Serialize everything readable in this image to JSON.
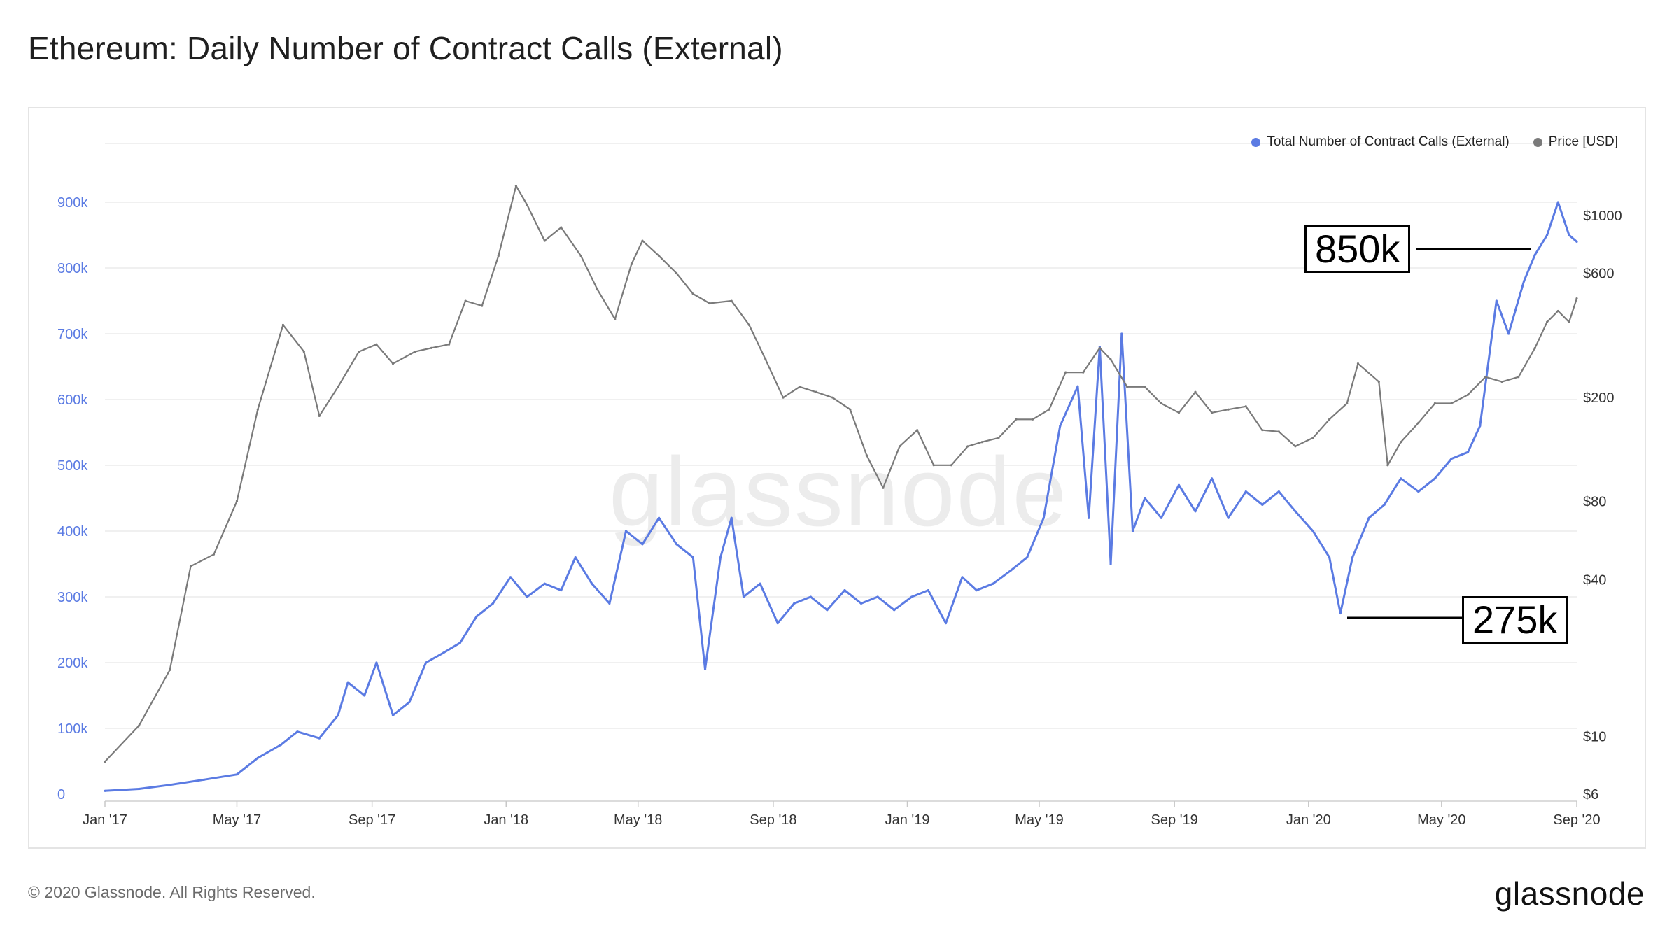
{
  "title": "Ethereum: Daily Number of Contract Calls (External)",
  "watermark": "glassnode",
  "footer": "© 2020 Glassnode. All Rights Reserved.",
  "brand": "glassnode",
  "legend": [
    {
      "label": "Total Number of Contract Calls (External)",
      "color": "#5b7be3"
    },
    {
      "label": "Price [USD]",
      "color": "#7a7a7a"
    }
  ],
  "callouts": [
    {
      "label": "850k",
      "value": 850000,
      "date": "2020-08-25"
    },
    {
      "label": "275k",
      "value": 275000,
      "date": "2020-01-30"
    }
  ],
  "chart_data": {
    "type": "line",
    "title": "Ethereum: Daily Number of Contract Calls (External)",
    "x_ticks": [
      "Jan '17",
      "May '17",
      "Sep '17",
      "Jan '18",
      "May '18",
      "Sep '18",
      "Jan '19",
      "May '19",
      "Sep '19",
      "Jan '20",
      "May '20",
      "Sep '20"
    ],
    "x_range": [
      "2017-01-01",
      "2020-09-01"
    ],
    "y_left": {
      "ticks": [
        "0",
        "100k",
        "200k",
        "300k",
        "400k",
        "500k",
        "600k",
        "700k",
        "800k",
        "900k"
      ],
      "range": [
        0,
        1000000
      ],
      "color": "#5b7be3"
    },
    "y_right": {
      "ticks": [
        "$6",
        "$10",
        "$40",
        "$80",
        "$200",
        "$600",
        "$1000"
      ],
      "scale": "log",
      "range": [
        6,
        1500
      ]
    },
    "grid": true,
    "legend_position": "top-right",
    "series": [
      {
        "name": "Total Number of Contract Calls (External)",
        "axis": "left",
        "color": "#5b7be3",
        "points": [
          [
            "2017-01-01",
            5000
          ],
          [
            "2017-02-01",
            8000
          ],
          [
            "2017-03-01",
            14000
          ],
          [
            "2017-04-01",
            22000
          ],
          [
            "2017-05-01",
            30000
          ],
          [
            "2017-05-20",
            55000
          ],
          [
            "2017-06-10",
            75000
          ],
          [
            "2017-06-25",
            95000
          ],
          [
            "2017-07-15",
            85000
          ],
          [
            "2017-08-01",
            120000
          ],
          [
            "2017-08-10",
            170000
          ],
          [
            "2017-08-25",
            150000
          ],
          [
            "2017-09-05",
            200000
          ],
          [
            "2017-09-20",
            120000
          ],
          [
            "2017-10-05",
            140000
          ],
          [
            "2017-10-20",
            200000
          ],
          [
            "2017-11-05",
            215000
          ],
          [
            "2017-11-20",
            230000
          ],
          [
            "2017-12-05",
            270000
          ],
          [
            "2017-12-20",
            290000
          ],
          [
            "2018-01-05",
            330000
          ],
          [
            "2018-01-20",
            300000
          ],
          [
            "2018-02-05",
            320000
          ],
          [
            "2018-02-20",
            310000
          ],
          [
            "2018-03-05",
            360000
          ],
          [
            "2018-03-20",
            320000
          ],
          [
            "2018-04-05",
            290000
          ],
          [
            "2018-04-20",
            400000
          ],
          [
            "2018-05-05",
            380000
          ],
          [
            "2018-05-20",
            420000
          ],
          [
            "2018-06-05",
            380000
          ],
          [
            "2018-06-20",
            360000
          ],
          [
            "2018-07-01",
            190000
          ],
          [
            "2018-07-15",
            360000
          ],
          [
            "2018-07-25",
            420000
          ],
          [
            "2018-08-05",
            300000
          ],
          [
            "2018-08-20",
            320000
          ],
          [
            "2018-09-05",
            260000
          ],
          [
            "2018-09-20",
            290000
          ],
          [
            "2018-10-05",
            300000
          ],
          [
            "2018-10-20",
            280000
          ],
          [
            "2018-11-05",
            310000
          ],
          [
            "2018-11-20",
            290000
          ],
          [
            "2018-12-05",
            300000
          ],
          [
            "2018-12-20",
            280000
          ],
          [
            "2019-01-05",
            300000
          ],
          [
            "2019-01-20",
            310000
          ],
          [
            "2019-02-05",
            260000
          ],
          [
            "2019-02-20",
            330000
          ],
          [
            "2019-03-05",
            310000
          ],
          [
            "2019-03-20",
            320000
          ],
          [
            "2019-04-05",
            340000
          ],
          [
            "2019-04-20",
            360000
          ],
          [
            "2019-05-05",
            420000
          ],
          [
            "2019-05-20",
            560000
          ],
          [
            "2019-06-05",
            620000
          ],
          [
            "2019-06-15",
            420000
          ],
          [
            "2019-06-25",
            680000
          ],
          [
            "2019-07-05",
            350000
          ],
          [
            "2019-07-15",
            700000
          ],
          [
            "2019-07-25",
            400000
          ],
          [
            "2019-08-05",
            450000
          ],
          [
            "2019-08-20",
            420000
          ],
          [
            "2019-09-05",
            470000
          ],
          [
            "2019-09-20",
            430000
          ],
          [
            "2019-10-05",
            480000
          ],
          [
            "2019-10-20",
            420000
          ],
          [
            "2019-11-05",
            460000
          ],
          [
            "2019-11-20",
            440000
          ],
          [
            "2019-12-05",
            460000
          ],
          [
            "2019-12-20",
            430000
          ],
          [
            "2020-01-05",
            400000
          ],
          [
            "2020-01-20",
            360000
          ],
          [
            "2020-01-30",
            275000
          ],
          [
            "2020-02-10",
            360000
          ],
          [
            "2020-02-25",
            420000
          ],
          [
            "2020-03-10",
            440000
          ],
          [
            "2020-03-25",
            480000
          ],
          [
            "2020-04-10",
            460000
          ],
          [
            "2020-04-25",
            480000
          ],
          [
            "2020-05-10",
            510000
          ],
          [
            "2020-05-25",
            520000
          ],
          [
            "2020-06-05",
            560000
          ],
          [
            "2020-06-20",
            750000
          ],
          [
            "2020-07-01",
            700000
          ],
          [
            "2020-07-15",
            780000
          ],
          [
            "2020-07-25",
            820000
          ],
          [
            "2020-08-05",
            850000
          ],
          [
            "2020-08-15",
            900000
          ],
          [
            "2020-08-25",
            850000
          ],
          [
            "2020-09-01",
            840000
          ]
        ]
      },
      {
        "name": "Price [USD]",
        "axis": "right",
        "color": "#7a7a7a",
        "points": [
          [
            "2017-01-01",
            8
          ],
          [
            "2017-02-01",
            11
          ],
          [
            "2017-03-01",
            18
          ],
          [
            "2017-03-20",
            45
          ],
          [
            "2017-04-10",
            50
          ],
          [
            "2017-05-01",
            80
          ],
          [
            "2017-05-20",
            180
          ],
          [
            "2017-06-12",
            380
          ],
          [
            "2017-07-01",
            300
          ],
          [
            "2017-07-15",
            170
          ],
          [
            "2017-08-01",
            220
          ],
          [
            "2017-08-20",
            300
          ],
          [
            "2017-09-05",
            320
          ],
          [
            "2017-09-20",
            270
          ],
          [
            "2017-10-10",
            300
          ],
          [
            "2017-10-25",
            310
          ],
          [
            "2017-11-10",
            320
          ],
          [
            "2017-11-25",
            470
          ],
          [
            "2017-12-10",
            450
          ],
          [
            "2017-12-25",
            700
          ],
          [
            "2018-01-10",
            1300
          ],
          [
            "2018-01-20",
            1100
          ],
          [
            "2018-02-05",
            800
          ],
          [
            "2018-02-20",
            900
          ],
          [
            "2018-03-10",
            700
          ],
          [
            "2018-03-25",
            520
          ],
          [
            "2018-04-10",
            400
          ],
          [
            "2018-04-25",
            650
          ],
          [
            "2018-05-05",
            800
          ],
          [
            "2018-05-20",
            700
          ],
          [
            "2018-06-05",
            600
          ],
          [
            "2018-06-20",
            500
          ],
          [
            "2018-07-05",
            460
          ],
          [
            "2018-07-25",
            470
          ],
          [
            "2018-08-10",
            380
          ],
          [
            "2018-08-25",
            280
          ],
          [
            "2018-09-10",
            200
          ],
          [
            "2018-09-25",
            220
          ],
          [
            "2018-10-10",
            210
          ],
          [
            "2018-10-25",
            200
          ],
          [
            "2018-11-10",
            180
          ],
          [
            "2018-11-25",
            120
          ],
          [
            "2018-12-10",
            90
          ],
          [
            "2018-12-25",
            130
          ],
          [
            "2019-01-10",
            150
          ],
          [
            "2019-01-25",
            110
          ],
          [
            "2019-02-10",
            110
          ],
          [
            "2019-02-25",
            130
          ],
          [
            "2019-03-10",
            135
          ],
          [
            "2019-03-25",
            140
          ],
          [
            "2019-04-10",
            165
          ],
          [
            "2019-04-25",
            165
          ],
          [
            "2019-05-10",
            180
          ],
          [
            "2019-05-25",
            250
          ],
          [
            "2019-06-10",
            250
          ],
          [
            "2019-06-25",
            310
          ],
          [
            "2019-07-05",
            280
          ],
          [
            "2019-07-20",
            220
          ],
          [
            "2019-08-05",
            220
          ],
          [
            "2019-08-20",
            190
          ],
          [
            "2019-09-05",
            175
          ],
          [
            "2019-09-20",
            210
          ],
          [
            "2019-10-05",
            175
          ],
          [
            "2019-10-20",
            180
          ],
          [
            "2019-11-05",
            185
          ],
          [
            "2019-11-20",
            150
          ],
          [
            "2019-12-05",
            148
          ],
          [
            "2019-12-20",
            130
          ],
          [
            "2020-01-05",
            140
          ],
          [
            "2020-01-20",
            165
          ],
          [
            "2020-02-05",
            190
          ],
          [
            "2020-02-15",
            270
          ],
          [
            "2020-03-05",
            230
          ],
          [
            "2020-03-13",
            110
          ],
          [
            "2020-03-25",
            135
          ],
          [
            "2020-04-10",
            160
          ],
          [
            "2020-04-25",
            190
          ],
          [
            "2020-05-10",
            190
          ],
          [
            "2020-05-25",
            205
          ],
          [
            "2020-06-10",
            240
          ],
          [
            "2020-06-25",
            230
          ],
          [
            "2020-07-10",
            240
          ],
          [
            "2020-07-25",
            310
          ],
          [
            "2020-08-05",
            390
          ],
          [
            "2020-08-15",
            430
          ],
          [
            "2020-08-25",
            390
          ],
          [
            "2020-09-01",
            480
          ]
        ]
      }
    ]
  }
}
